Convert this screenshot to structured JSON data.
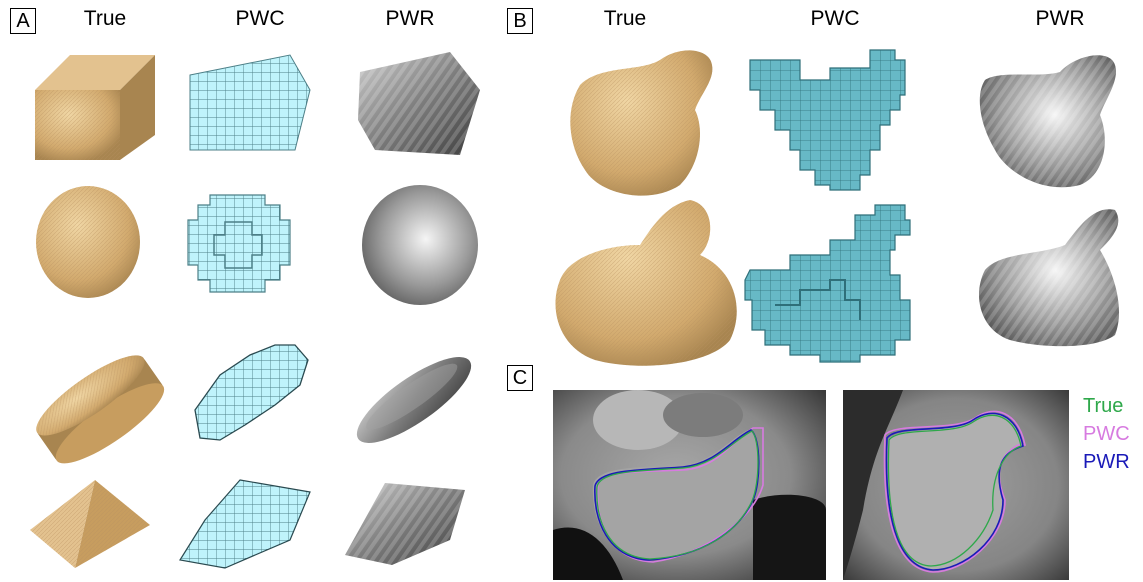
{
  "panels": {
    "a": {
      "label": "A",
      "headers": [
        "True",
        "PWC",
        "PWR"
      ]
    },
    "b": {
      "label": "B",
      "headers": [
        "True",
        "PWC",
        "PWR"
      ]
    },
    "c": {
      "label": "C"
    }
  },
  "legend": [
    {
      "label": "True",
      "color": "#2ea84a"
    },
    {
      "label": "PWC",
      "color": "#d77be0"
    },
    {
      "label": "PWR",
      "color": "#1a1ab8"
    }
  ],
  "colors": {
    "true_render": "#d9b47a",
    "pwc_render_a": "#bff3fb",
    "pwc_render_b": "#5fb6c4",
    "pwr_render": "#9a9a9a"
  }
}
